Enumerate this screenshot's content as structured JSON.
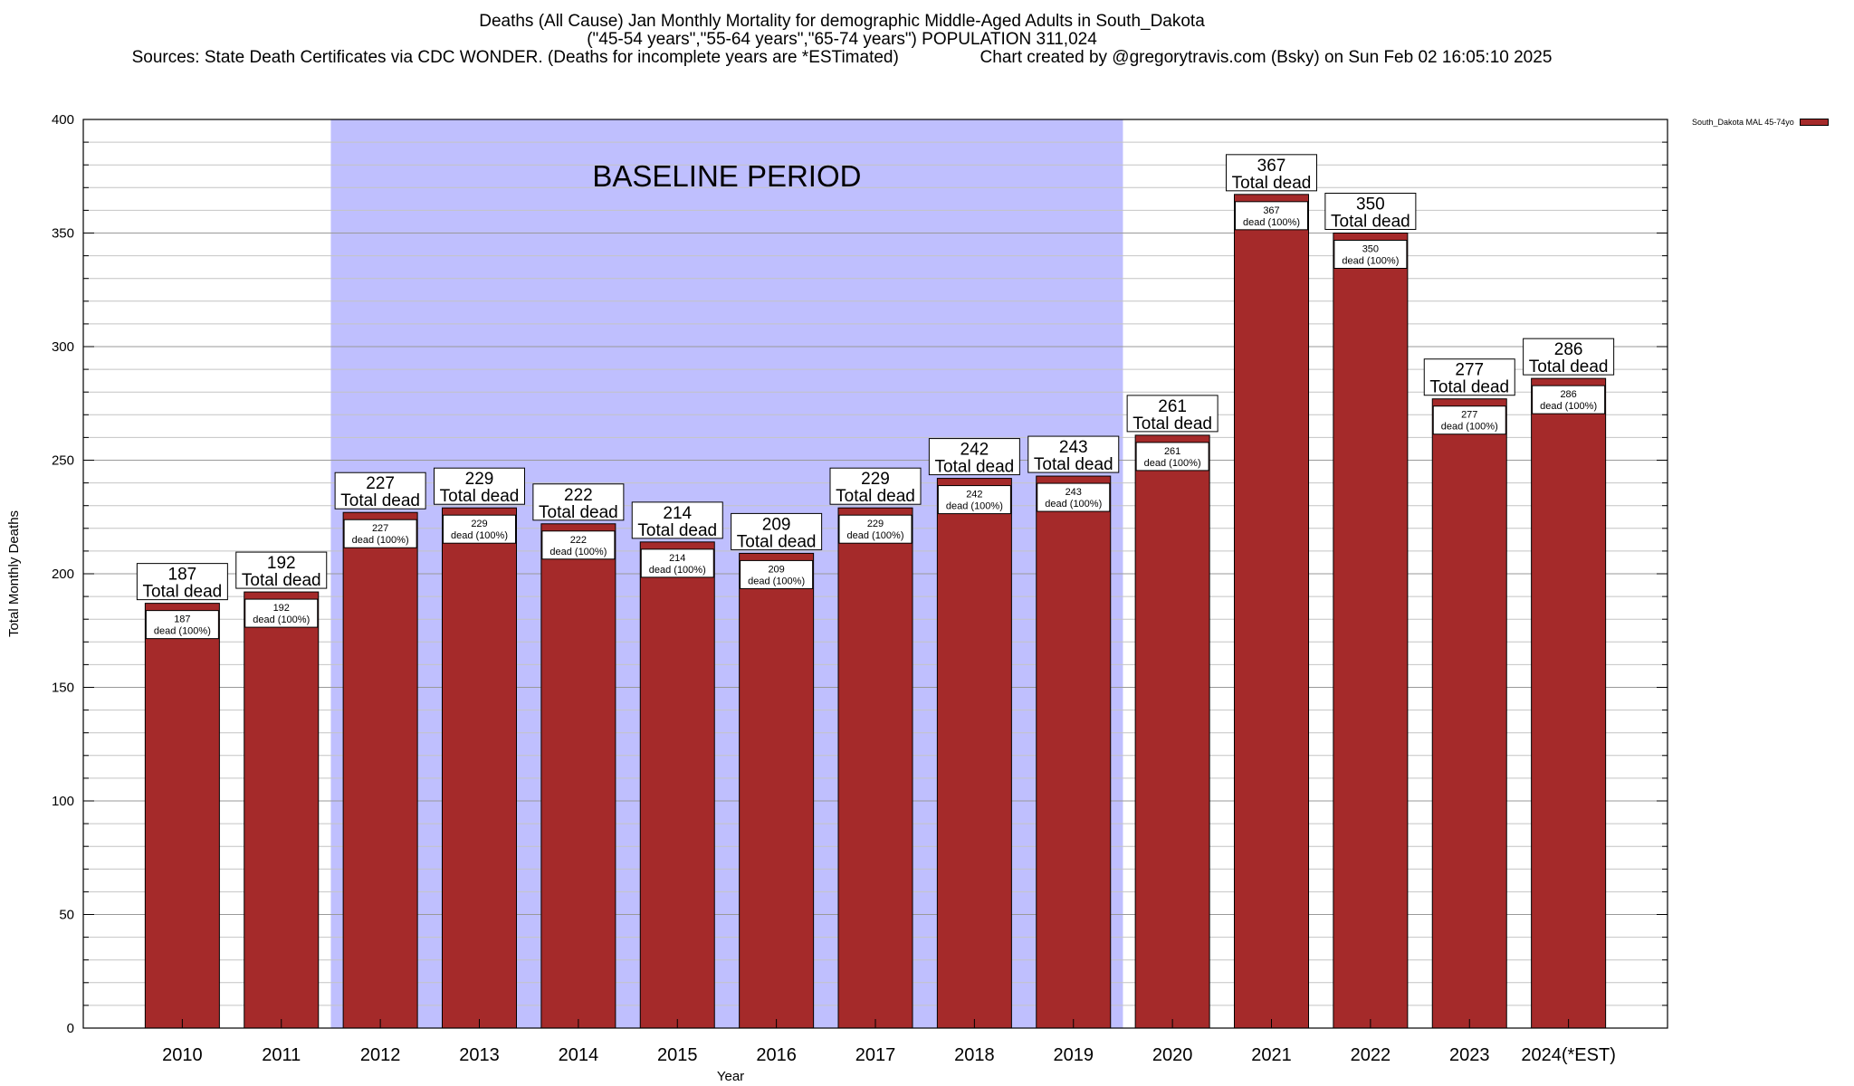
{
  "header": {
    "title_line1": "Deaths (All Cause) Jan Monthly Mortality for demographic Middle-Aged Adults in South_Dakota",
    "title_line2": "(\"45-54 years\",\"55-64 years\",\"65-74 years\") POPULATION 311,024",
    "title_line3": "Sources: State Death Certificates via CDC WONDER. (Deaths for incomplete years are *ESTimated)                 Chart created by @gregorytravis.com (Bsky) on Sun Feb 02 16:05:10 2025"
  },
  "legend": {
    "label": "South_Dakota MAL 45-74yo",
    "color": "#a52a2a"
  },
  "chart_data": {
    "type": "bar",
    "xlabel": "Year",
    "ylabel": "Total Monthly Deaths",
    "ylim": [
      0,
      400
    ],
    "yticks": [
      0,
      50,
      100,
      150,
      200,
      250,
      300,
      350,
      400
    ],
    "grid": true,
    "legend_position": "top-right",
    "categories": [
      "2010",
      "2011",
      "2012",
      "2013",
      "2014",
      "2015",
      "2016",
      "2017",
      "2018",
      "2019",
      "2020",
      "2021",
      "2022",
      "2023",
      "2024(*EST)"
    ],
    "series": [
      {
        "name": "South_Dakota MAL 45-74yo",
        "color": "#a52a2a",
        "values": [
          187,
          192,
          227,
          229,
          222,
          214,
          209,
          229,
          242,
          243,
          261,
          367,
          350,
          277,
          286
        ]
      }
    ],
    "top_label_suffix": "Total dead",
    "inner_label_suffix": "dead (100%)",
    "baseline_region": {
      "label": "BASELINE PERIOD",
      "from": "2012",
      "to": "2019",
      "color": "#bfbffe"
    }
  }
}
